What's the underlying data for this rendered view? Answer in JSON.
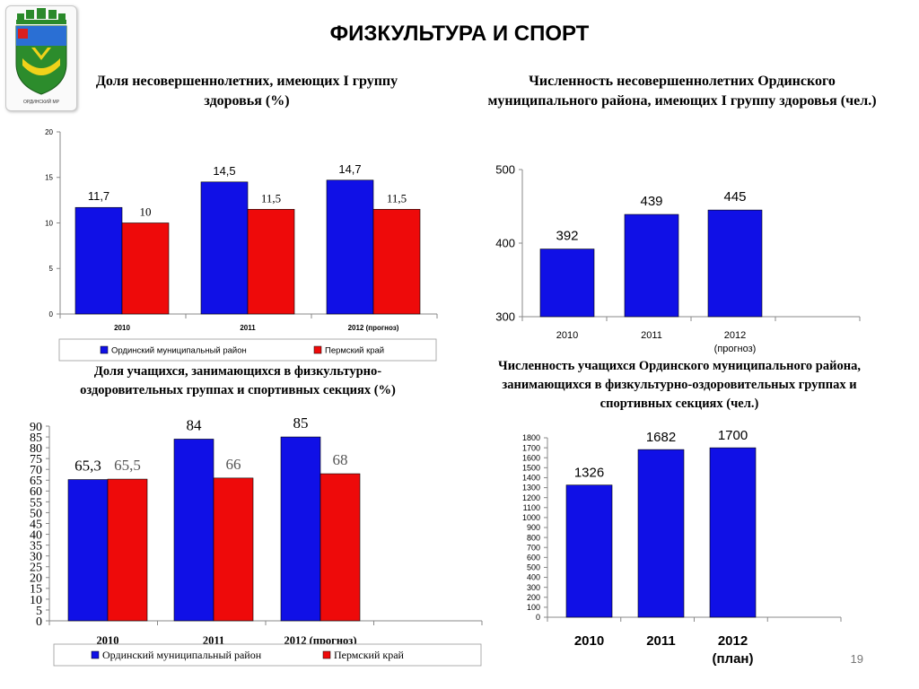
{
  "page": {
    "title": "ФИЗКУЛЬТУРА И СПОРТ",
    "slide_number": "19"
  },
  "logo": {
    "caption": "ОРДИНСКИЙ МР"
  },
  "colors": {
    "series1": "#1010e6",
    "series2": "#ee0a0a",
    "axis": "#888888"
  },
  "chart_data": [
    {
      "type": "bar",
      "title": "Доля несовершеннолетних, имеющих I группу здоровья (%)",
      "categories": [
        "2010",
        "2011",
        "2012 (прогноз)"
      ],
      "series": [
        {
          "name": "Ординский муниципальный район",
          "values": [
            11.7,
            14.5,
            14.7
          ],
          "labels": [
            "11,7",
            "14,5",
            "14,7"
          ]
        },
        {
          "name": "Пермский край",
          "values": [
            10,
            11.5,
            11.5
          ],
          "labels": [
            "10",
            "11,5",
            "11,5"
          ]
        }
      ],
      "yticks": [
        "0",
        "5",
        "10",
        "15",
        "20"
      ],
      "ylim": [
        0,
        20
      ],
      "grid": false,
      "legend": "bottom"
    },
    {
      "type": "bar",
      "title": "Численность несовершеннолетних Ординского муниципального района, имеющих I группу здоровья (чел.)",
      "categories": [
        "2010",
        "2011",
        "2012 (прогноз)"
      ],
      "series": [
        {
          "values": [
            392,
            439,
            445
          ],
          "labels": [
            "392",
            "439",
            "445"
          ]
        }
      ],
      "yticks": [
        "300",
        "400",
        "500"
      ],
      "ylim": [
        300,
        500
      ],
      "grid": false,
      "legend": "none"
    },
    {
      "type": "bar",
      "title": "Доля учащихся, занимающихся в физкультурно-оздоровительных группах и спортивных секциях (%)",
      "categories": [
        "2010",
        "2011",
        "2012 (прогноз)"
      ],
      "series": [
        {
          "name": "Ординский муниципальный район",
          "values": [
            65.3,
            84,
            85
          ],
          "labels": [
            "65,3",
            "84",
            "85"
          ]
        },
        {
          "name": "Пермский край",
          "values": [
            65.5,
            66,
            68
          ],
          "labels": [
            "65,5",
            "66",
            "68"
          ]
        }
      ],
      "yticks": [
        "0",
        "5",
        "10",
        "15",
        "20",
        "25",
        "30",
        "35",
        "40",
        "45",
        "50",
        "55",
        "60",
        "65",
        "70",
        "75",
        "80",
        "85",
        "90"
      ],
      "ylim": [
        0,
        90
      ],
      "grid": false,
      "legend": "bottom"
    },
    {
      "type": "bar",
      "title": "Численность учащихся Ординского муниципального района, занимающихся в физкультурно-оздоровительных группах и спортивных секциях (чел.)",
      "categories": [
        "2010",
        "2011",
        "2012 (план)"
      ],
      "series": [
        {
          "values": [
            1326,
            1682,
            1700
          ],
          "labels": [
            "1326",
            "1682",
            "1700"
          ]
        }
      ],
      "yticks": [
        "0",
        "100",
        "200",
        "300",
        "400",
        "500",
        "600",
        "700",
        "800",
        "900",
        "1000",
        "1100",
        "1200",
        "1300",
        "1400",
        "1500",
        "1600",
        "1700",
        "1800"
      ],
      "ylim": [
        0,
        1800
      ],
      "grid": false,
      "legend": "none"
    }
  ]
}
